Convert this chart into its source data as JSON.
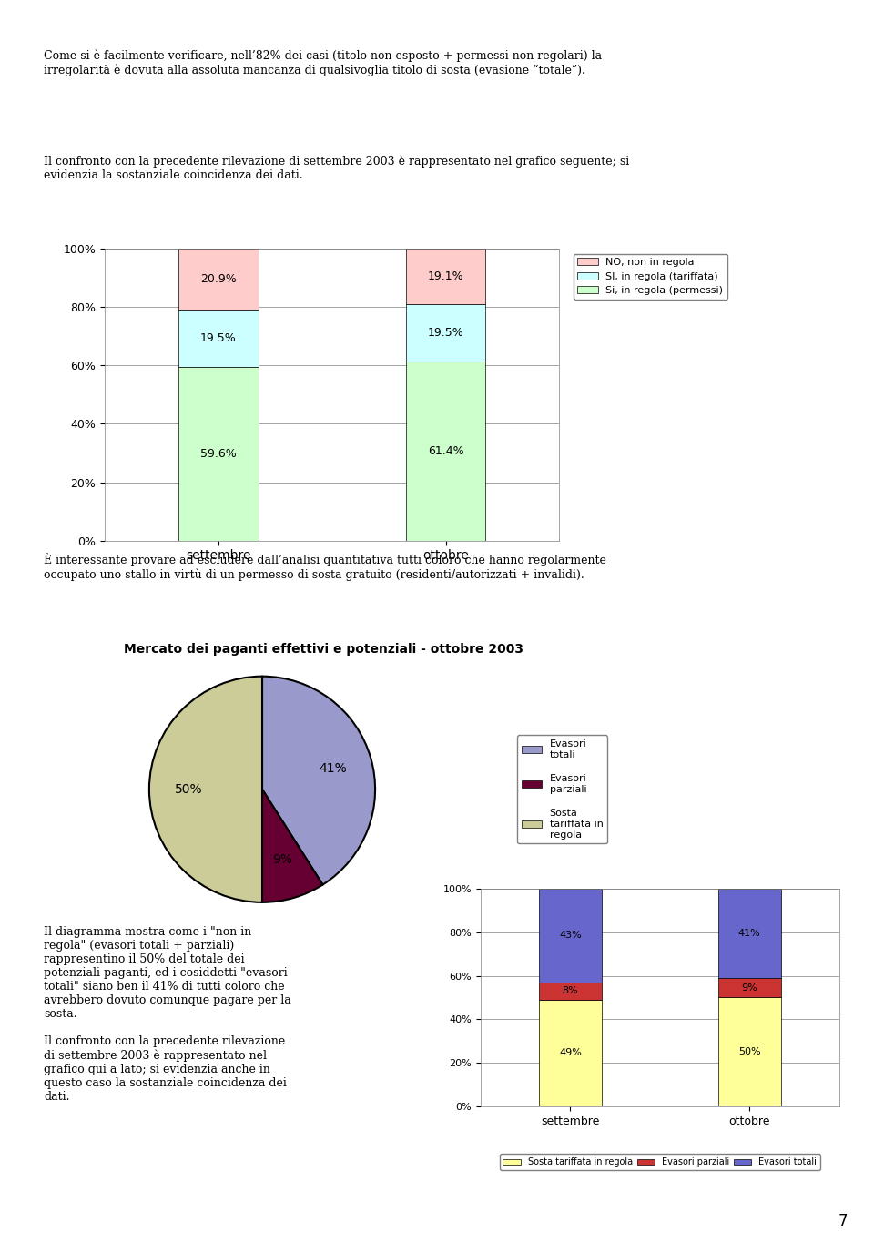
{
  "chart1": {
    "categories": [
      "settembre",
      "ottobre"
    ],
    "si_permessi": [
      59.6,
      61.4
    ],
    "si_tariffata": [
      19.5,
      19.5
    ],
    "no_regola": [
      20.9,
      19.1
    ],
    "colors": {
      "si_permessi": "#ccffcc",
      "si_tariffata": "#ccffff",
      "no_regola": "#ffcccc"
    },
    "legend_no": "NO, non in regola",
    "legend_si_t": "SI, in regola (tariffata)",
    "legend_si_p": "Si, in regola (permessi)",
    "ylim": [
      0,
      100
    ],
    "yticks": [
      0,
      20,
      40,
      60,
      80,
      100
    ],
    "yticklabels": [
      "0%",
      "20%",
      "40%",
      "60%",
      "80%",
      "100%"
    ]
  },
  "chart2": {
    "title": "Mercato dei paganti effettivi e potenziali - ottobre 2003",
    "sizes": [
      41,
      9,
      50
    ],
    "pct_labels": [
      "41%",
      "9%",
      "50%"
    ],
    "colors": [
      "#9999cc",
      "#660033",
      "#cccc99"
    ],
    "legend_labels": [
      "Evasori\ntotali",
      "Evasori\nparziali",
      "Sosta\ntariffata in\nregola"
    ]
  },
  "chart3": {
    "categories": [
      "settembre",
      "ottobre"
    ],
    "sosta": [
      49,
      50
    ],
    "evasori_parziali": [
      8,
      9
    ],
    "evasori_totali": [
      43,
      41
    ],
    "colors": {
      "sosta": "#ffff99",
      "evasori_parziali": "#cc3333",
      "evasori_totali": "#6666cc"
    },
    "legend_sosta": "Sosta tariffata in regola",
    "legend_ep": "Evasori parziali",
    "legend_et": "Evasori totali",
    "ylim": [
      0,
      100
    ],
    "yticks": [
      0,
      20,
      40,
      60,
      80,
      100
    ],
    "yticklabels": [
      "0%",
      "20%",
      "40%",
      "60%",
      "80%",
      "100%"
    ]
  },
  "page_background": "#ffffff",
  "text1": "Come si è facilmente verificare, nell'82% dei casi (titolo non esposto + permessi non regolari) la irregolarità è dovuta alla assoluta mancanza di qualsivoglia titolo di sosta (evasione \"totale\").",
  "text2": "Il confronto con la precedente rilevazione di settembre 2003 è rappresentato nel grafico seguente; si evidenzia la sostanziale coincidenza dei dati.",
  "text3": "È interessante provare ad escludere dall'analisi quantitativa tutti coloro che hanno regolarmente occupato uno stallo in virtù di un permesso di sosta gratuito (residenti/autorizzati + invalidi).",
  "text4l_1": "Il diagramma mostra come i “non in",
  "text4l_2": "regola” (evasori totali + parziali)",
  "text4l_3": "rappresentino il 50% del totale dei",
  "text4l_4": "potenziali paganti, ed i cosiddetti “evasori",
  "text4l_5": "totali” siano ben il 41% di tutti coloro che",
  "text4l_6": "avrebbero dovuto comunque pagare per la",
  "text4l_7": "sosta.",
  "text4l_8": "Il confronto con la precedente rilevazione",
  "text4l_9": "di settembre 2003 è rappresentato nel",
  "text4l_10": "grafico qui a lato; si evidenzia anche in",
  "text4l_11": "questo caso la sostanziale coincidenza dei",
  "text4l_12": "dati.",
  "page_number": "7"
}
